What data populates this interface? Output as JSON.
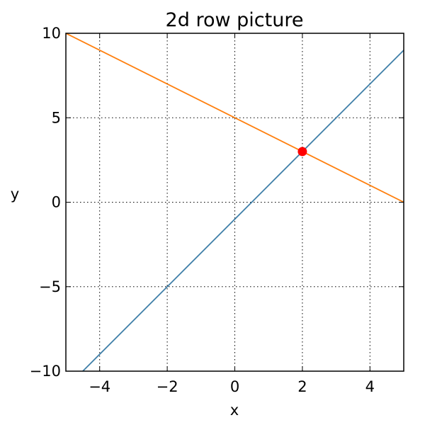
{
  "chart_data": {
    "type": "line",
    "title": "2d row picture",
    "xlabel": "x",
    "ylabel": "y",
    "xlim": [
      -5,
      5
    ],
    "ylim": [
      -10,
      10
    ],
    "xticks": [
      -4,
      -2,
      0,
      2,
      4
    ],
    "xtick_labels": [
      "−4",
      "−2",
      "0",
      "2",
      "4"
    ],
    "yticks": [
      -10,
      -5,
      0,
      5,
      10
    ],
    "ytick_labels": [
      "−10",
      "−5",
      "0",
      "5",
      "10"
    ],
    "grid": true,
    "series": [
      {
        "x": [
          -5,
          5
        ],
        "y": [
          -11,
          9
        ],
        "color": "#3f7fa8"
      },
      {
        "x": [
          -5,
          5
        ],
        "y": [
          10,
          0
        ],
        "color": "#ff7f0e"
      }
    ],
    "points": [
      {
        "x": 2,
        "y": 3,
        "color": "#ff0000"
      }
    ]
  }
}
